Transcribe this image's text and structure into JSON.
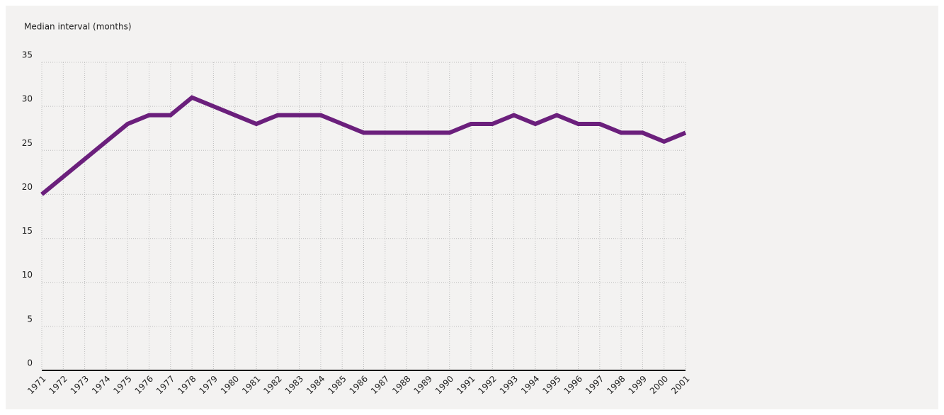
{
  "chart_data": {
    "type": "line",
    "y_label": "Median interval (months)",
    "categories": [
      "1971",
      "1972",
      "1973",
      "1974",
      "1975",
      "1976",
      "1977",
      "1978",
      "1979",
      "1980",
      "1981",
      "1982",
      "1983",
      "1984",
      "1985",
      "1986",
      "1987",
      "1988",
      "1989",
      "1990",
      "1991",
      "1992",
      "1993",
      "1994",
      "1995",
      "1996",
      "1997",
      "1998",
      "1999",
      "2000",
      "2001"
    ],
    "series": [
      {
        "name": "Median interval",
        "color": "#6b1f7c",
        "values": [
          20,
          22,
          24,
          26,
          28,
          29,
          29,
          31,
          30,
          29,
          28,
          29,
          29,
          29,
          28,
          27,
          27,
          27,
          27,
          27,
          28,
          28,
          29,
          28,
          29,
          28,
          28,
          27,
          27,
          26,
          27
        ]
      }
    ],
    "ylim": [
      0,
      35
    ],
    "yticks": [
      0,
      5,
      10,
      15,
      20,
      25,
      30,
      35
    ],
    "grid": true
  }
}
